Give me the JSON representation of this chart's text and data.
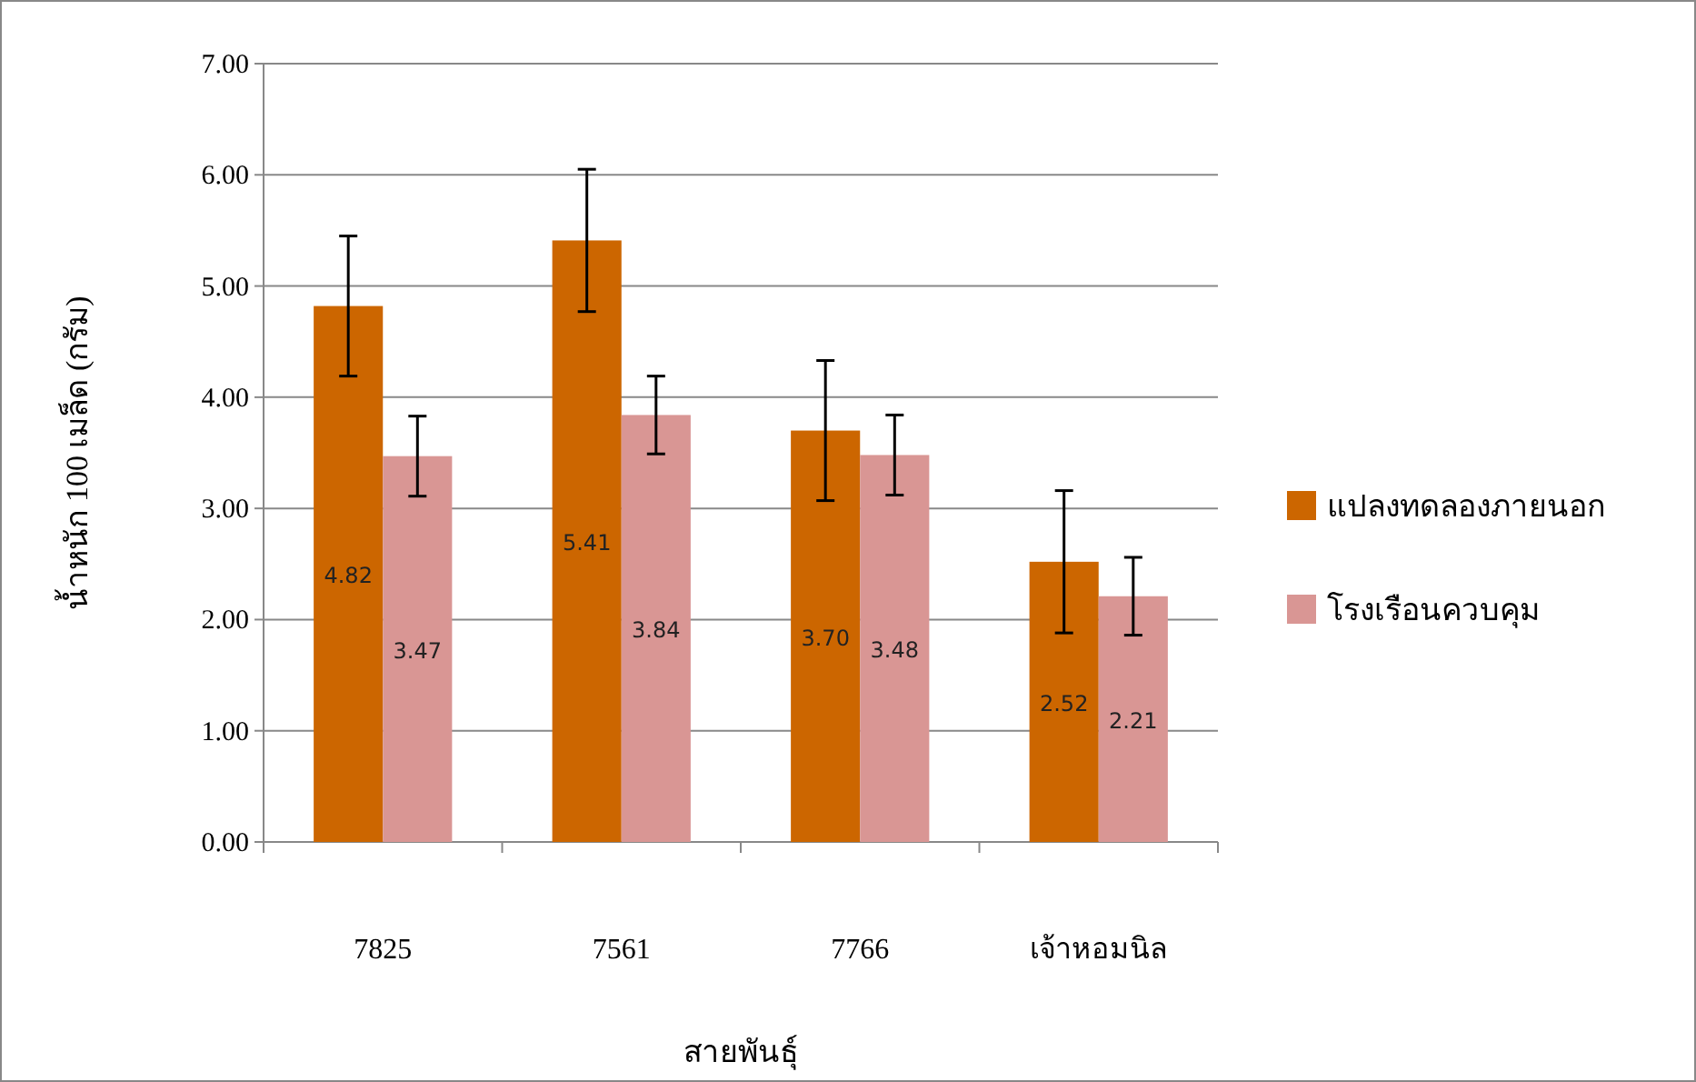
{
  "chart_data": {
    "type": "bar",
    "xlabel": "สายพันธุ์",
    "ylabel": "น้ำหนัก 100 เมล็ด (กรัม)",
    "categories": [
      "7825",
      "7561",
      "7766",
      "เจ้าหอมนิล"
    ],
    "series": [
      {
        "name": "แปลงทดลองภายนอก",
        "color": "#cc6600",
        "values": [
          4.82,
          5.41,
          3.7,
          2.52
        ],
        "value_labels": [
          "4.82",
          "5.41",
          "3.70",
          "2.52"
        ],
        "errors": [
          0.63,
          0.64,
          0.63,
          0.64
        ]
      },
      {
        "name": "โรงเรือนควบคุม",
        "color": "#d99694",
        "values": [
          3.47,
          3.84,
          3.48,
          2.21
        ],
        "value_labels": [
          "3.47",
          "3.84",
          "3.48",
          "2.21"
        ],
        "errors": [
          0.36,
          0.35,
          0.36,
          0.35
        ]
      }
    ],
    "ylim": [
      0,
      7
    ],
    "yticks": [
      {
        "value": 0,
        "label": "0.00"
      },
      {
        "value": 1,
        "label": "1.00"
      },
      {
        "value": 2,
        "label": "2.00"
      },
      {
        "value": 3,
        "label": "3.00"
      },
      {
        "value": 4,
        "label": "4.00"
      },
      {
        "value": 5,
        "label": "5.00"
      },
      {
        "value": 6,
        "label": "6.00"
      },
      {
        "value": 7,
        "label": "7.00"
      }
    ],
    "grid": "y",
    "legend": "right"
  }
}
